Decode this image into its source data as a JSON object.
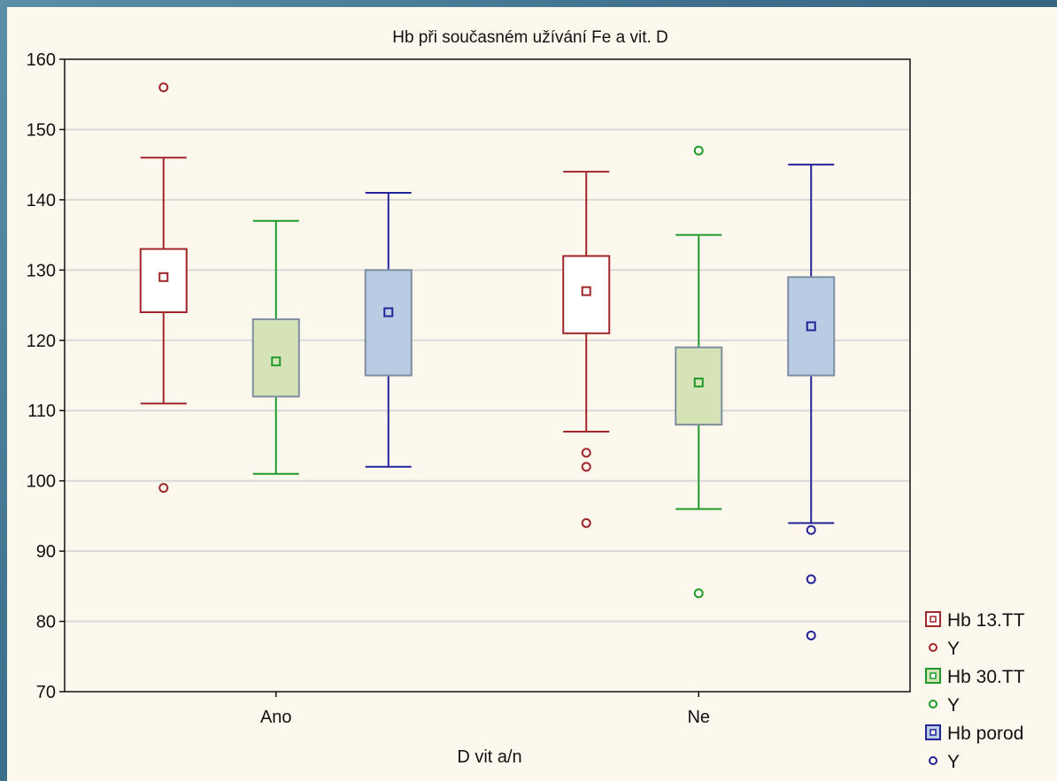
{
  "chart_data": {
    "type": "box",
    "title": "Hb při současném užívání Fe a vit. D",
    "xlabel": "D vit a/n",
    "ylabel": "",
    "ylim": [
      70,
      160
    ],
    "yticks": [
      70,
      80,
      90,
      100,
      110,
      120,
      130,
      140,
      150,
      160
    ],
    "categories": [
      "Ano",
      "Ne"
    ],
    "grid": true,
    "legend_position": "bottom-right",
    "series": [
      {
        "name": "Hb 13.TT",
        "outlier_name": "Y",
        "color": "#a0262a",
        "fill": "#ffffff",
        "boxes": [
          {
            "whisker_low": 111,
            "q1": 124,
            "median": 129,
            "q3": 133,
            "whisker_high": 146,
            "outliers": [
              156,
              99
            ]
          },
          {
            "whisker_low": 107,
            "q1": 121,
            "median": 127,
            "q3": 132,
            "whisker_high": 144,
            "outliers": [
              104,
              102,
              94
            ]
          }
        ]
      },
      {
        "name": "Hb 30.TT",
        "outlier_name": "Y",
        "color": "#1f9a2a",
        "fill": "#d6e3b7",
        "boxes": [
          {
            "whisker_low": 101,
            "q1": 112,
            "median": 117,
            "q3": 123,
            "whisker_high": 137,
            "outliers": []
          },
          {
            "whisker_low": 96,
            "q1": 108,
            "median": 114,
            "q3": 119,
            "whisker_high": 135,
            "outliers": [
              147,
              84
            ]
          }
        ]
      },
      {
        "name": "Hb porod",
        "outlier_name": "Y",
        "color": "#23249a",
        "fill": "#b8cde3",
        "boxes": [
          {
            "whisker_low": 102,
            "q1": 115,
            "median": 124,
            "q3": 130,
            "whisker_high": 141,
            "outliers": []
          },
          {
            "whisker_low": 94,
            "q1": 115,
            "median": 122,
            "q3": 129,
            "whisker_high": 145,
            "outliers": [
              93,
              86,
              78
            ]
          }
        ]
      }
    ]
  }
}
